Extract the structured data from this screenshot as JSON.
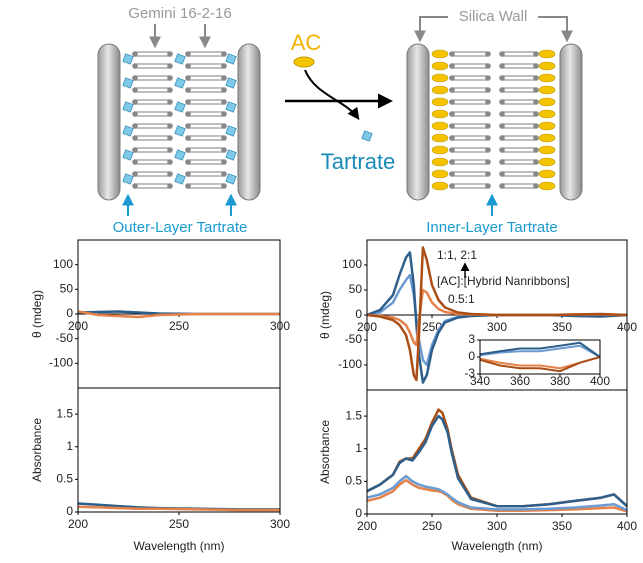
{
  "diagram": {
    "gemini_label": "Gemini 16-2-16",
    "ac_label": "AC",
    "tartrate_label": "Tartrate",
    "silica_wall_label": "Silica Wall",
    "outer_layer_label": "Outer-Layer Tartrate",
    "inner_layer_label": "Inner-Layer Tartrate"
  },
  "chart_data": [
    {
      "type": "line",
      "y_label": "θ (mdeg)",
      "xlim": [
        200,
        300
      ],
      "ylim": [
        -150,
        150
      ],
      "xticks": [
        200,
        250,
        300
      ],
      "yticks": [
        100,
        50,
        0,
        -50,
        -100
      ],
      "x": [
        200,
        210,
        220,
        230,
        240,
        260,
        280,
        300
      ],
      "series": [
        {
          "color": "#2e5f8a",
          "values": [
            3,
            4,
            5,
            3,
            1,
            0,
            0,
            0
          ]
        },
        {
          "color": "#e5824a",
          "values": [
            5,
            -2,
            -4,
            -6,
            -2,
            0,
            0,
            0
          ]
        }
      ]
    },
    {
      "type": "line",
      "y_label": "Absorbance",
      "x_label": "Wavelength (nm)",
      "xlim": [
        200,
        300
      ],
      "ylim": [
        0,
        1.9
      ],
      "xticks": [
        200,
        250,
        300
      ],
      "yticks": [
        0,
        0.5,
        1,
        1.5
      ],
      "x": [
        200,
        210,
        220,
        230,
        240,
        260,
        280,
        300
      ],
      "series": [
        {
          "color": "#2e5f8a",
          "values": [
            0.13,
            0.11,
            0.09,
            0.07,
            0.06,
            0.05,
            0.04,
            0.04
          ]
        },
        {
          "color": "#e5824a",
          "values": [
            0.08,
            0.07,
            0.06,
            0.05,
            0.05,
            0.04,
            0.03,
            0.03
          ]
        }
      ]
    },
    {
      "type": "line",
      "y_label": "θ (mdeg)",
      "annotations": [
        "1:1, 2:1",
        "[AC]:[Hybrid Nanribbons]",
        "0.5:1"
      ],
      "xlim": [
        200,
        400
      ],
      "ylim": [
        -150,
        150
      ],
      "xticks": [
        200,
        250,
        300,
        350,
        400
      ],
      "yticks": [
        100,
        50,
        0,
        -50,
        -100
      ],
      "x": [
        200,
        210,
        220,
        225,
        230,
        233,
        236,
        238,
        240,
        243,
        246,
        250,
        255,
        260,
        270,
        280,
        300,
        320,
        340,
        360,
        380,
        400
      ],
      "series": [
        {
          "color": "#6b9bd1",
          "values": [
            0,
            5,
            25,
            50,
            70,
            80,
            40,
            -10,
            -50,
            -90,
            -100,
            -60,
            -30,
            -12,
            -4,
            -1,
            0,
            0,
            0,
            -1,
            -2,
            0
          ]
        },
        {
          "color": "#2e5f8a",
          "values": [
            0,
            10,
            40,
            80,
            115,
            125,
            60,
            -20,
            -80,
            -135,
            -120,
            -70,
            -35,
            -15,
            -5,
            -2,
            0,
            0,
            0,
            -2,
            -3,
            0
          ]
        },
        {
          "color": "#e5824a",
          "values": [
            0,
            -2,
            -5,
            -10,
            -20,
            -35,
            -55,
            -60,
            -10,
            50,
            45,
            25,
            12,
            6,
            2,
            1,
            0,
            0,
            0,
            1,
            1,
            0
          ]
        },
        {
          "color": "#a94f16",
          "values": [
            0,
            -3,
            -10,
            -20,
            -40,
            -70,
            -120,
            -130,
            -40,
            135,
            110,
            60,
            30,
            15,
            5,
            2,
            0,
            0,
            0,
            1,
            2,
            0
          ]
        }
      ]
    },
    {
      "type": "line",
      "xlim": [
        340,
        400
      ],
      "ylim": [
        -3,
        3
      ],
      "xticks": [
        340,
        360,
        380,
        400
      ],
      "yticks": [
        3,
        0,
        -3
      ],
      "x": [
        340,
        350,
        360,
        370,
        380,
        390,
        400
      ],
      "series": [
        {
          "color": "#6b9bd1",
          "values": [
            0.3,
            0.8,
            1,
            1,
            1.5,
            2,
            0
          ]
        },
        {
          "color": "#2e5f8a",
          "values": [
            0.5,
            1,
            1.5,
            1.5,
            2,
            2.5,
            0
          ]
        },
        {
          "color": "#e5824a",
          "values": [
            -0.3,
            -1,
            -1.5,
            -1.5,
            -2,
            -1,
            0
          ]
        },
        {
          "color": "#a94f16",
          "values": [
            -0.5,
            -1.5,
            -2,
            -2,
            -2.5,
            -1,
            0
          ]
        }
      ]
    },
    {
      "type": "line",
      "y_label": "Absorbance",
      "x_label": "Wavelength (nm)",
      "xlim": [
        200,
        400
      ],
      "ylim": [
        0,
        1.9
      ],
      "xticks": [
        200,
        250,
        300,
        350,
        400
      ],
      "yticks": [
        0,
        0.5,
        1,
        1.5
      ],
      "x": [
        200,
        210,
        220,
        225,
        230,
        235,
        240,
        245,
        250,
        255,
        258,
        262,
        265,
        270,
        280,
        300,
        320,
        340,
        360,
        380,
        390,
        400
      ],
      "series": [
        {
          "color": "#e5824a",
          "values": [
            0.2,
            0.25,
            0.35,
            0.45,
            0.52,
            0.45,
            0.4,
            0.38,
            0.36,
            0.35,
            0.33,
            0.28,
            0.22,
            0.15,
            0.08,
            0.05,
            0.05,
            0.06,
            0.07,
            0.09,
            0.1,
            0.04
          ]
        },
        {
          "color": "#6b9bd1",
          "values": [
            0.25,
            0.3,
            0.4,
            0.5,
            0.58,
            0.5,
            0.45,
            0.42,
            0.4,
            0.38,
            0.35,
            0.3,
            0.25,
            0.18,
            0.1,
            0.07,
            0.07,
            0.08,
            0.1,
            0.13,
            0.15,
            0.06
          ]
        },
        {
          "color": "#a94f16",
          "values": [
            0.35,
            0.45,
            0.6,
            0.8,
            0.85,
            0.85,
            1.0,
            1.15,
            1.4,
            1.6,
            1.55,
            1.3,
            1.0,
            0.6,
            0.25,
            0.12,
            0.12,
            0.15,
            0.2,
            0.25,
            0.3,
            0.12
          ]
        },
        {
          "color": "#2e5f8a",
          "values": [
            0.35,
            0.45,
            0.6,
            0.78,
            0.85,
            0.82,
            0.95,
            1.1,
            1.35,
            1.5,
            1.45,
            1.25,
            0.95,
            0.55,
            0.23,
            0.12,
            0.12,
            0.15,
            0.2,
            0.25,
            0.3,
            0.12
          ]
        }
      ]
    }
  ]
}
